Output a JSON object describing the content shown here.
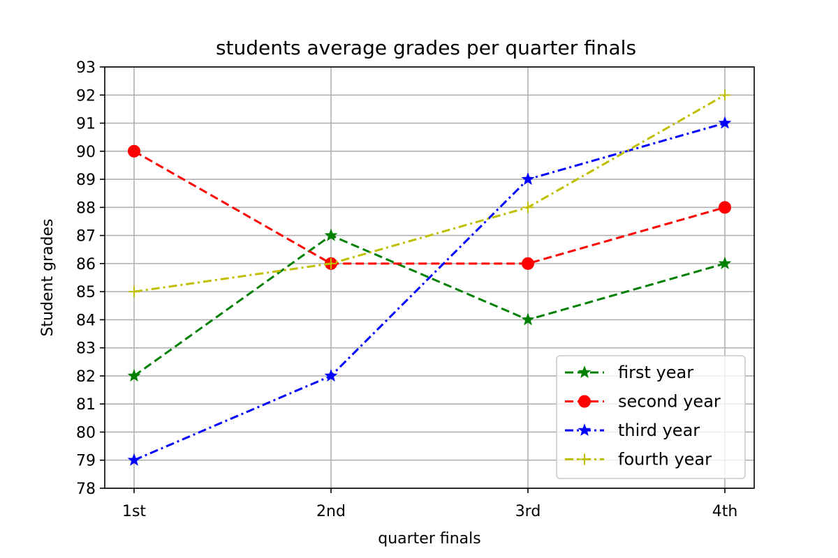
{
  "chart_data": {
    "type": "line",
    "title": "students average grades per quarter finals",
    "xlabel": "quarter finals",
    "ylabel": "Student grades",
    "categories": [
      "1st",
      "2nd",
      "3rd",
      "4th"
    ],
    "ylim": [
      78,
      93
    ],
    "yticks": [
      78,
      79,
      80,
      81,
      82,
      83,
      84,
      85,
      86,
      87,
      88,
      89,
      90,
      91,
      92,
      93
    ],
    "grid": true,
    "legend_position": "bottom-right",
    "series": [
      {
        "name": "first year",
        "values": [
          82,
          87,
          84,
          86
        ],
        "color": "#008000",
        "line_style": "dashed",
        "marker": "star"
      },
      {
        "name": "second year",
        "values": [
          90,
          86,
          86,
          88
        ],
        "color": "#ff0000",
        "line_style": "dashed",
        "marker": "circle"
      },
      {
        "name": "third year",
        "values": [
          79,
          82,
          89,
          91
        ],
        "color": "#0000ff",
        "line_style": "dashdot",
        "marker": "star"
      },
      {
        "name": "fourth year",
        "values": [
          85,
          86,
          88,
          92
        ],
        "color": "#bfbf00",
        "line_style": "dashdot",
        "marker": "plus"
      }
    ]
  }
}
